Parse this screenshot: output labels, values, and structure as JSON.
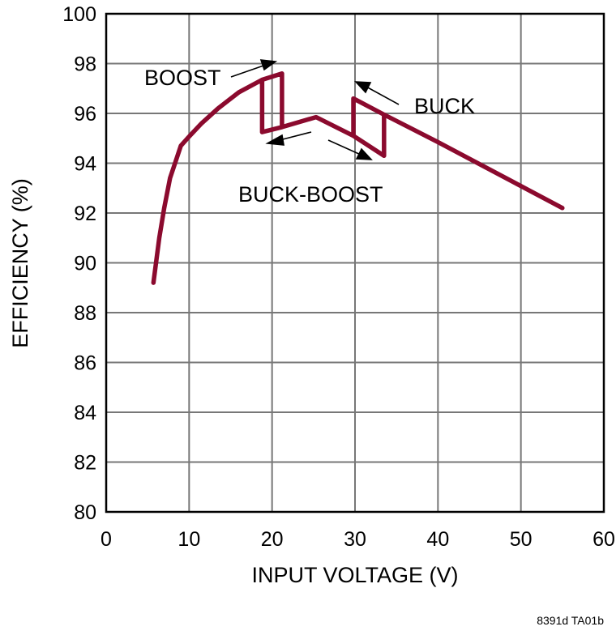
{
  "chart_data": {
    "type": "line",
    "title": "",
    "xlabel": "INPUT VOLTAGE (V)",
    "ylabel": "EFFICIENCY (%)",
    "xlim": [
      0,
      60
    ],
    "ylim": [
      80,
      100
    ],
    "x_ticks": [
      "0",
      "10",
      "20",
      "30",
      "40",
      "50",
      "60"
    ],
    "y_ticks": [
      "80",
      "82",
      "84",
      "86",
      "88",
      "90",
      "92",
      "94",
      "96",
      "98",
      "100"
    ],
    "grid": true,
    "series": [
      {
        "color": "#8b0a2e",
        "points": [
          [
            5.7,
            89.2
          ],
          [
            6.4,
            91.0
          ],
          [
            7.0,
            92.2
          ],
          [
            7.7,
            93.4
          ],
          [
            8.4,
            94.1
          ],
          [
            9.0,
            94.7
          ],
          [
            9.8,
            95.0
          ],
          [
            11.5,
            95.6
          ],
          [
            13.5,
            96.2
          ],
          [
            16.0,
            96.85
          ],
          [
            18.8,
            97.35
          ],
          [
            21.2,
            97.6
          ],
          [
            21.2,
            95.45
          ],
          [
            18.8,
            95.25
          ],
          [
            18.8,
            97.35
          ],
          [
            21.2,
            97.6
          ],
          [
            21.2,
            95.45
          ],
          [
            25.3,
            95.85
          ],
          [
            29.8,
            95.1
          ],
          [
            29.8,
            96.6
          ],
          [
            33.5,
            95.95
          ],
          [
            33.5,
            94.3
          ],
          [
            29.8,
            95.1
          ],
          [
            29.8,
            96.6
          ],
          [
            33.5,
            95.95
          ],
          [
            40.0,
            94.85
          ],
          [
            55.0,
            92.2
          ]
        ]
      }
    ],
    "annotations": [
      "BOOST",
      "BUCK",
      "BUCK-BOOST"
    ],
    "footnote": "8391d TA01b"
  }
}
